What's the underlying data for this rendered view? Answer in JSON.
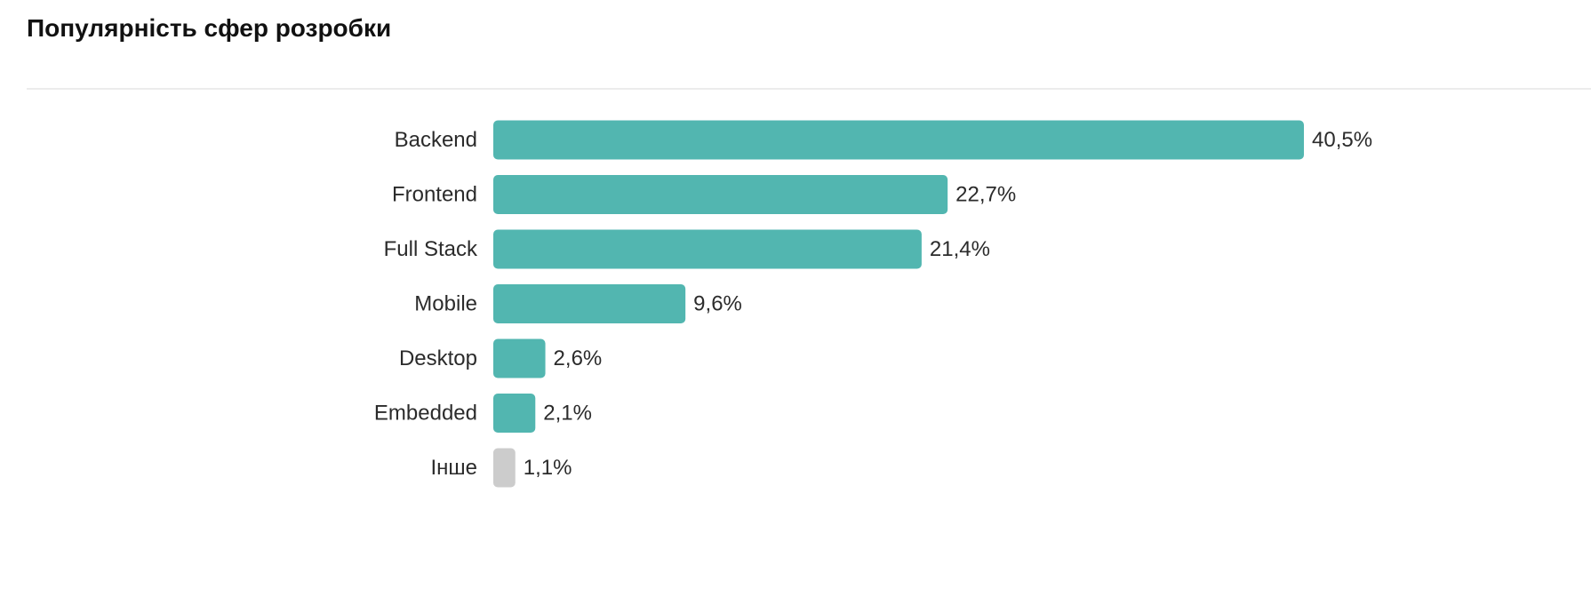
{
  "chart_data": {
    "type": "bar",
    "orientation": "horizontal",
    "title": "Популярність сфер розробки",
    "categories": [
      "Backend",
      "Frontend",
      "Full Stack",
      "Mobile",
      "Desktop",
      "Embedded",
      "Інше"
    ],
    "values": [
      40.5,
      22.7,
      21.4,
      9.6,
      2.6,
      2.1,
      1.1
    ],
    "value_labels": [
      "40,5%",
      "22,7%",
      "21,4%",
      "9,6%",
      "2,6%",
      "2,1%",
      "1,1%"
    ],
    "bar_colors": [
      "#52b6b0",
      "#52b6b0",
      "#52b6b0",
      "#52b6b0",
      "#52b6b0",
      "#52b6b0",
      "#cccccc"
    ],
    "unit": "%",
    "xlabel": "",
    "ylabel": "",
    "xlim": [
      0,
      40.5
    ],
    "grid": false,
    "legend": "none"
  }
}
